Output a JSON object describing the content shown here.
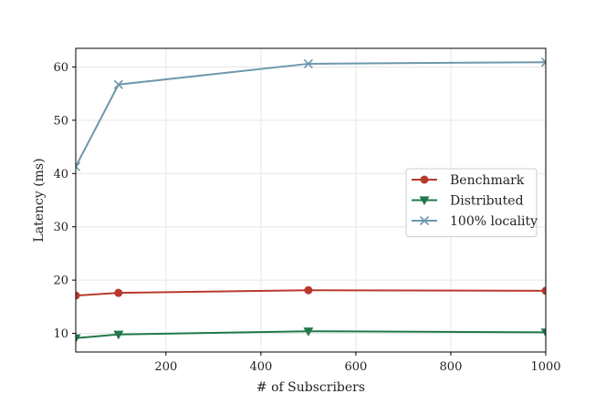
{
  "chart_data": {
    "type": "line",
    "title": "",
    "xlabel": "# of Subscribers",
    "ylabel": "Latency (ms)",
    "xlim": [
      10,
      1000
    ],
    "ylim": [
      6.5,
      63.5
    ],
    "xticks": [
      200,
      400,
      600,
      800,
      1000
    ],
    "xtick_labels": [
      "200",
      "400",
      "600",
      "800",
      "1000"
    ],
    "yticks": [
      10,
      20,
      30,
      40,
      50,
      60
    ],
    "ytick_labels": [
      "10",
      "20",
      "30",
      "40",
      "50",
      "60"
    ],
    "grid": true,
    "legend_position": "center-right",
    "x": [
      10,
      100,
      500,
      1000
    ],
    "series": [
      {
        "name": "Benchmark",
        "marker": "circle",
        "color": "#b83a2c",
        "values": [
          17.1,
          17.6,
          18.1,
          18.0
        ]
      },
      {
        "name": "Distributed",
        "marker": "triangle-down",
        "color": "#22784a",
        "values": [
          9.1,
          9.8,
          10.4,
          10.2
        ]
      },
      {
        "name": "100% locality",
        "marker": "x",
        "color": "#6e97ad",
        "values": [
          41.3,
          56.7,
          60.6,
          60.9
        ]
      }
    ]
  }
}
